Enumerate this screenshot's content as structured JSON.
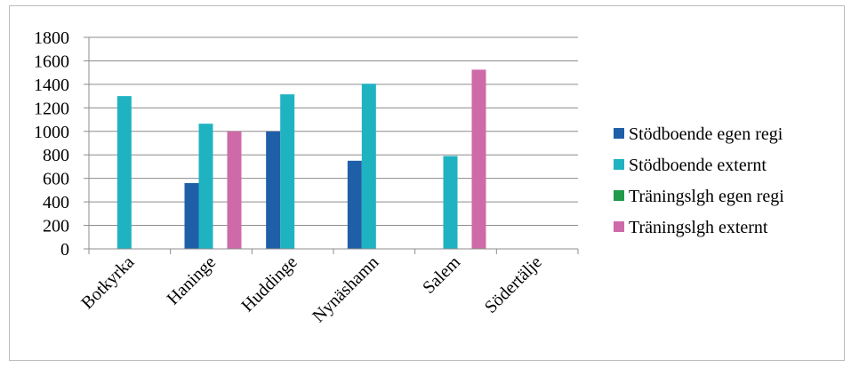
{
  "chart_data": {
    "type": "bar",
    "categories": [
      "Botkyrka",
      "Haninge",
      "Huddinge",
      "Nynäshamn",
      "Salem",
      "Södertälje"
    ],
    "ylim": [
      0,
      1800
    ],
    "yticks": [
      0,
      200,
      400,
      600,
      800,
      1000,
      1200,
      1400,
      1600,
      1800
    ],
    "grid": true,
    "legend_position": "right",
    "series": [
      {
        "name": "Stödboende egen regi",
        "color": "#1f5fa8",
        "values": [
          0,
          560,
          1000,
          750,
          0,
          0
        ]
      },
      {
        "name": "Stödboende externt",
        "color": "#1fb3c2",
        "values": [
          1300,
          1065,
          1315,
          1405,
          790,
          0
        ]
      },
      {
        "name": "Träningslgh egen regi",
        "color": "#1e9a4a",
        "values": [
          0,
          0,
          0,
          0,
          0,
          0
        ]
      },
      {
        "name": "Träningslgh externt",
        "color": "#cf6aa8",
        "values": [
          0,
          1000,
          0,
          0,
          1525,
          0
        ]
      }
    ]
  }
}
